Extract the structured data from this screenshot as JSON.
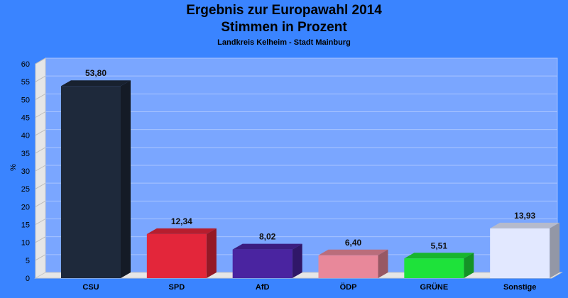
{
  "chart_data": {
    "type": "bar",
    "title": "Ergebnis zur Europawahl 2014",
    "title2": "Stimmen in Prozent",
    "subtitle": "Landkreis Kelheim - Stadt Mainburg",
    "ylabel": "%",
    "categories": [
      "CSU",
      "SPD",
      "AfD",
      "ÖDP",
      "GRÜNE",
      "Sonstige"
    ],
    "values": [
      53.8,
      12.34,
      8.02,
      6.4,
      5.51,
      13.93
    ],
    "value_labels": [
      "53,80",
      "12,34",
      "8,02",
      "6,40",
      "5,51",
      "13,93"
    ],
    "colors": [
      "#1e293b",
      "#e3263a",
      "#4a24a0",
      "#e8889a",
      "#1ee23a",
      "#e2e8ff"
    ],
    "ylim": [
      0,
      60
    ],
    "yticks": [
      0,
      5,
      10,
      15,
      20,
      25,
      30,
      35,
      40,
      45,
      50,
      55,
      60
    ],
    "grid": true,
    "legend": "none",
    "style": "3d"
  }
}
